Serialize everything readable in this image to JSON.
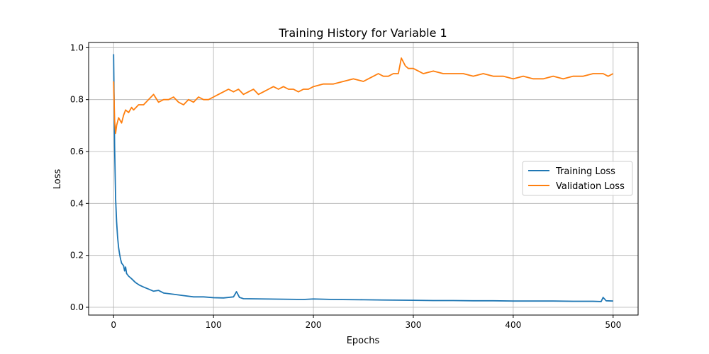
{
  "chart_data": {
    "type": "line",
    "title": "Training History for Variable 1",
    "xlabel": "Epochs",
    "ylabel": "Loss",
    "xlim": [
      -25,
      525
    ],
    "ylim": [
      -0.03,
      1.02
    ],
    "x_ticks": [
      0,
      100,
      200,
      300,
      400,
      500
    ],
    "y_ticks": [
      0.0,
      0.2,
      0.4,
      0.6,
      0.8,
      1.0
    ],
    "x_tick_labels": [
      "0",
      "100",
      "200",
      "300",
      "400",
      "500"
    ],
    "y_tick_labels": [
      "0.0",
      "0.2",
      "0.4",
      "0.6",
      "0.8",
      "1.0"
    ],
    "grid": true,
    "legend_position": "center-right",
    "series": [
      {
        "name": "Training Loss",
        "color": "#1f77b4",
        "points": [
          [
            0,
            0.975
          ],
          [
            1,
            0.62
          ],
          [
            2,
            0.42
          ],
          [
            3,
            0.33
          ],
          [
            4,
            0.27
          ],
          [
            5,
            0.23
          ],
          [
            6,
            0.205
          ],
          [
            7,
            0.185
          ],
          [
            8,
            0.17
          ],
          [
            10,
            0.16
          ],
          [
            11,
            0.14
          ],
          [
            12,
            0.155
          ],
          [
            13,
            0.13
          ],
          [
            15,
            0.12
          ],
          [
            18,
            0.11
          ],
          [
            22,
            0.095
          ],
          [
            26,
            0.085
          ],
          [
            30,
            0.078
          ],
          [
            35,
            0.07
          ],
          [
            40,
            0.062
          ],
          [
            45,
            0.065
          ],
          [
            50,
            0.055
          ],
          [
            60,
            0.05
          ],
          [
            70,
            0.045
          ],
          [
            80,
            0.04
          ],
          [
            90,
            0.04
          ],
          [
            100,
            0.037
          ],
          [
            110,
            0.036
          ],
          [
            120,
            0.04
          ],
          [
            123,
            0.06
          ],
          [
            126,
            0.038
          ],
          [
            130,
            0.033
          ],
          [
            150,
            0.032
          ],
          [
            170,
            0.031
          ],
          [
            190,
            0.03
          ],
          [
            200,
            0.032
          ],
          [
            220,
            0.03
          ],
          [
            250,
            0.029
          ],
          [
            270,
            0.028
          ],
          [
            300,
            0.027
          ],
          [
            320,
            0.026
          ],
          [
            340,
            0.026
          ],
          [
            360,
            0.025
          ],
          [
            380,
            0.025
          ],
          [
            400,
            0.024
          ],
          [
            420,
            0.024
          ],
          [
            440,
            0.024
          ],
          [
            460,
            0.023
          ],
          [
            480,
            0.023
          ],
          [
            488,
            0.022
          ],
          [
            490,
            0.038
          ],
          [
            493,
            0.025
          ],
          [
            500,
            0.024
          ]
        ]
      },
      {
        "name": "Validation Loss",
        "color": "#ff7f0e",
        "points": [
          [
            0,
            0.87
          ],
          [
            1,
            0.72
          ],
          [
            2,
            0.67
          ],
          [
            3,
            0.7
          ],
          [
            5,
            0.73
          ],
          [
            8,
            0.71
          ],
          [
            10,
            0.74
          ],
          [
            12,
            0.76
          ],
          [
            15,
            0.75
          ],
          [
            18,
            0.77
          ],
          [
            20,
            0.76
          ],
          [
            25,
            0.78
          ],
          [
            30,
            0.78
          ],
          [
            35,
            0.8
          ],
          [
            40,
            0.82
          ],
          [
            45,
            0.79
          ],
          [
            50,
            0.8
          ],
          [
            55,
            0.8
          ],
          [
            60,
            0.81
          ],
          [
            65,
            0.79
          ],
          [
            70,
            0.78
          ],
          [
            75,
            0.8
          ],
          [
            80,
            0.79
          ],
          [
            85,
            0.81
          ],
          [
            90,
            0.8
          ],
          [
            95,
            0.8
          ],
          [
            100,
            0.81
          ],
          [
            105,
            0.82
          ],
          [
            110,
            0.83
          ],
          [
            115,
            0.84
          ],
          [
            120,
            0.83
          ],
          [
            125,
            0.84
          ],
          [
            130,
            0.82
          ],
          [
            135,
            0.83
          ],
          [
            140,
            0.84
          ],
          [
            145,
            0.82
          ],
          [
            150,
            0.83
          ],
          [
            155,
            0.84
          ],
          [
            160,
            0.85
          ],
          [
            165,
            0.84
          ],
          [
            170,
            0.85
          ],
          [
            175,
            0.84
          ],
          [
            180,
            0.84
          ],
          [
            185,
            0.83
          ],
          [
            190,
            0.84
          ],
          [
            195,
            0.84
          ],
          [
            200,
            0.85
          ],
          [
            210,
            0.86
          ],
          [
            220,
            0.86
          ],
          [
            230,
            0.87
          ],
          [
            240,
            0.88
          ],
          [
            250,
            0.87
          ],
          [
            255,
            0.88
          ],
          [
            260,
            0.89
          ],
          [
            265,
            0.9
          ],
          [
            270,
            0.89
          ],
          [
            275,
            0.89
          ],
          [
            280,
            0.9
          ],
          [
            285,
            0.9
          ],
          [
            288,
            0.96
          ],
          [
            292,
            0.93
          ],
          [
            295,
            0.92
          ],
          [
            300,
            0.92
          ],
          [
            305,
            0.91
          ],
          [
            310,
            0.9
          ],
          [
            320,
            0.91
          ],
          [
            330,
            0.9
          ],
          [
            340,
            0.9
          ],
          [
            350,
            0.9
          ],
          [
            360,
            0.89
          ],
          [
            370,
            0.9
          ],
          [
            380,
            0.89
          ],
          [
            390,
            0.89
          ],
          [
            400,
            0.88
          ],
          [
            410,
            0.89
          ],
          [
            420,
            0.88
          ],
          [
            430,
            0.88
          ],
          [
            440,
            0.89
          ],
          [
            450,
            0.88
          ],
          [
            460,
            0.89
          ],
          [
            470,
            0.89
          ],
          [
            480,
            0.9
          ],
          [
            490,
            0.9
          ],
          [
            495,
            0.89
          ],
          [
            500,
            0.9
          ]
        ]
      }
    ]
  }
}
